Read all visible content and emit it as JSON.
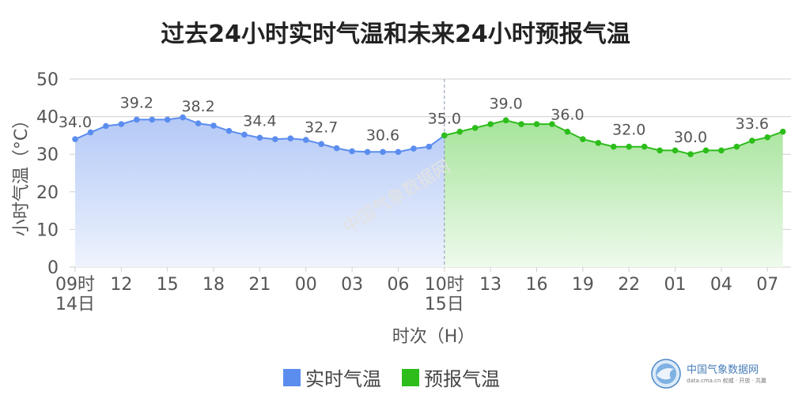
{
  "title": "过去24小时实时气温和未来24小时预报气温",
  "watermark": "中国气象数据网",
  "brand": {
    "name": "中国气象数据网",
    "sub": "data.cma.cn 权威 · 开放 · 共赢"
  },
  "colors": {
    "observed": "#5b8def",
    "forecast": "#2dbd1b",
    "grid": "#cccccc",
    "axis_text": "#555555"
  },
  "chart_data": {
    "type": "area",
    "xlabel": "时次（H）",
    "ylabel": "小时气温（°C）",
    "ylim": [
      0,
      50
    ],
    "yticks": [
      0,
      10,
      20,
      30,
      40,
      50
    ],
    "x_tick_labels": [
      {
        "hour_index": 0,
        "label": "09时",
        "sub": "14日"
      },
      {
        "hour_index": 3,
        "label": "12"
      },
      {
        "hour_index": 6,
        "label": "15"
      },
      {
        "hour_index": 9,
        "label": "18"
      },
      {
        "hour_index": 12,
        "label": "21"
      },
      {
        "hour_index": 15,
        "label": "00"
      },
      {
        "hour_index": 18,
        "label": "03"
      },
      {
        "hour_index": 21,
        "label": "06"
      },
      {
        "hour_index": 24,
        "label": "10时",
        "sub": "15日"
      },
      {
        "hour_index": 27,
        "label": "13"
      },
      {
        "hour_index": 30,
        "label": "16"
      },
      {
        "hour_index": 33,
        "label": "19"
      },
      {
        "hour_index": 36,
        "label": "22"
      },
      {
        "hour_index": 39,
        "label": "01"
      },
      {
        "hour_index": 42,
        "label": "04"
      },
      {
        "hour_index": 45,
        "label": "07"
      }
    ],
    "series": [
      {
        "name": "实时气温",
        "start_hour_index": 0,
        "values": [
          34.0,
          35.8,
          37.5,
          38.0,
          39.2,
          39.2,
          39.2,
          39.8,
          38.2,
          37.6,
          36.2,
          35.2,
          34.4,
          34.0,
          34.2,
          33.8,
          32.7,
          31.6,
          30.8,
          30.6,
          30.6,
          30.6,
          31.5,
          32.0,
          35.0
        ],
        "labels": {
          "0": "34.0",
          "4": "39.2",
          "8": "38.2",
          "12": "34.4",
          "16": "32.7",
          "20": "30.6",
          "24": "35.0"
        }
      },
      {
        "name": "预报气温",
        "start_hour_index": 24,
        "values": [
          35.0,
          36.0,
          37.0,
          38.0,
          39.0,
          38.0,
          38.0,
          38.0,
          36.0,
          34.0,
          33.0,
          32.0,
          32.0,
          32.0,
          31.0,
          31.0,
          30.0,
          31.0,
          31.0,
          32.0,
          33.6,
          34.5,
          36.0
        ],
        "labels": {
          "4": "39.0",
          "8": "36.0",
          "12": "32.0",
          "16": "30.0",
          "20": "33.6"
        }
      }
    ],
    "divider_hour_index": 24,
    "grid": true,
    "legend_position": "bottom-center"
  }
}
